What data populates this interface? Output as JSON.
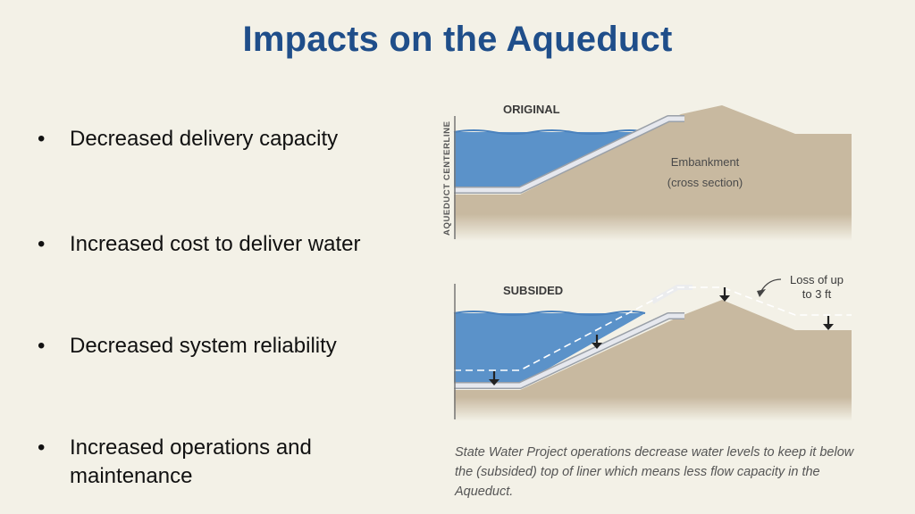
{
  "title": "Impacts on the Aqueduct",
  "bullets": [
    "Decreased delivery capacity",
    "Increased cost to deliver water",
    "Decreased system reliability",
    "Increased operations and maintenance"
  ],
  "diagram": {
    "top_panel": {
      "label": "ORIGINAL",
      "axis_label": "AQUEDUCT CENTERLINE",
      "embankment_label": "Embankment",
      "embankment_sublabel": "(cross section)"
    },
    "bottom_panel": {
      "label": "SUBSIDED",
      "callout_line1": "Loss of up",
      "callout_line2": "to 3 ft"
    },
    "colors": {
      "water": "#5b92c9",
      "water_surface": "#4a82be",
      "ground": "#c8b9a0",
      "liner": "#e6e8ee",
      "background": "#f3f1e7"
    }
  },
  "caption": "State Water Project operations decrease water levels to keep it below the (subsided) top of liner which means less flow capacity in the Aqueduct."
}
